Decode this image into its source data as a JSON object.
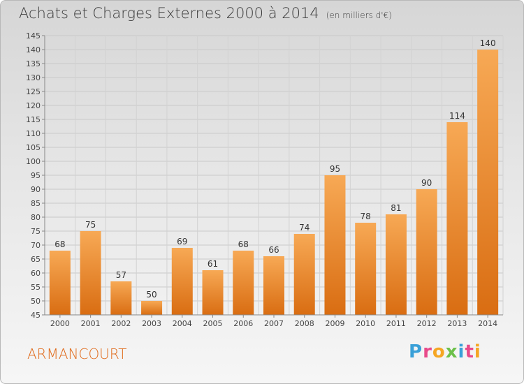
{
  "chart_data": {
    "type": "bar",
    "title": "Achats et Charges Externes 2000 à 2014",
    "subtitle": "(en milliers d'€)",
    "categories": [
      "2000",
      "2001",
      "2002",
      "2003",
      "2004",
      "2005",
      "2006",
      "2007",
      "2008",
      "2009",
      "2010",
      "2011",
      "2012",
      "2013",
      "2014"
    ],
    "values": [
      68,
      75,
      57,
      50,
      69,
      61,
      68,
      66,
      74,
      95,
      78,
      81,
      90,
      114,
      140
    ],
    "ylim": [
      45,
      145
    ],
    "ytick_step": 5,
    "grid": true,
    "bar_color": "#f08a2e"
  },
  "footer": {
    "commune": "ARMANCOURT",
    "logo_letters": [
      {
        "ch": "P",
        "color": "#3aa0d8"
      },
      {
        "ch": "r",
        "color": "#e84a8a"
      },
      {
        "ch": "o",
        "color": "#f5a623"
      },
      {
        "ch": "x",
        "color": "#6cc04a"
      },
      {
        "ch": "i",
        "color": "#3aa0d8"
      },
      {
        "ch": "t",
        "color": "#e84a8a"
      },
      {
        "ch": "i",
        "color": "#f5a623"
      }
    ]
  }
}
